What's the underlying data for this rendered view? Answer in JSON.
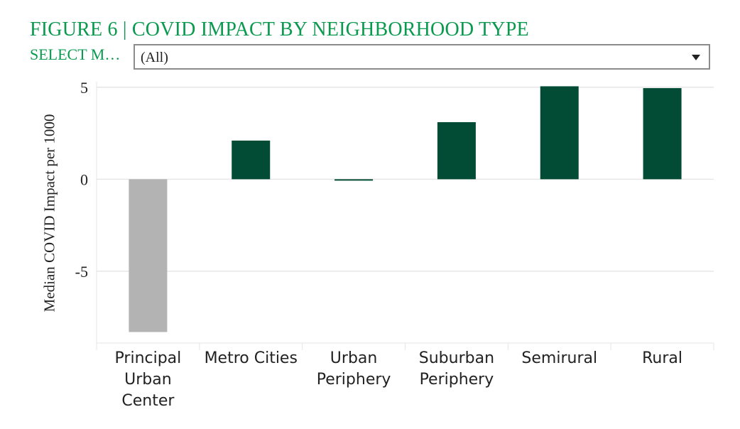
{
  "header": {
    "title": "FIGURE 6 | COVID IMPACT BY NEIGHBORHOOD TYPE",
    "filter_label": "SELECT M…",
    "filter_value": "(All)"
  },
  "colors": {
    "positive": "#024b35",
    "negative": "#b3b3b3",
    "title": "#0a9a4f",
    "grid": "#e6e6e6"
  },
  "chart_data": {
    "type": "bar",
    "title": "",
    "xlabel": "",
    "ylabel": "Median COVID Impact per 1000",
    "categories": [
      "Principal Urban Center",
      "Metro Cities",
      "Urban Periphery",
      "Suburban Periphery",
      "Semirural",
      "Rural"
    ],
    "category_lines": [
      [
        "Principal",
        "Urban",
        "Center"
      ],
      [
        "Metro Cities"
      ],
      [
        "Urban",
        "Periphery"
      ],
      [
        "Suburban",
        "Periphery"
      ],
      [
        "Semirural"
      ],
      [
        "Rural"
      ]
    ],
    "values": [
      -8.3,
      2.1,
      -0.05,
      3.1,
      5.05,
      4.95
    ],
    "yticks": [
      5,
      0,
      -5
    ],
    "ytick_labels": [
      "5",
      "0",
      "-5"
    ],
    "ylim": [
      -8.9,
      5.3
    ],
    "grid": true
  }
}
